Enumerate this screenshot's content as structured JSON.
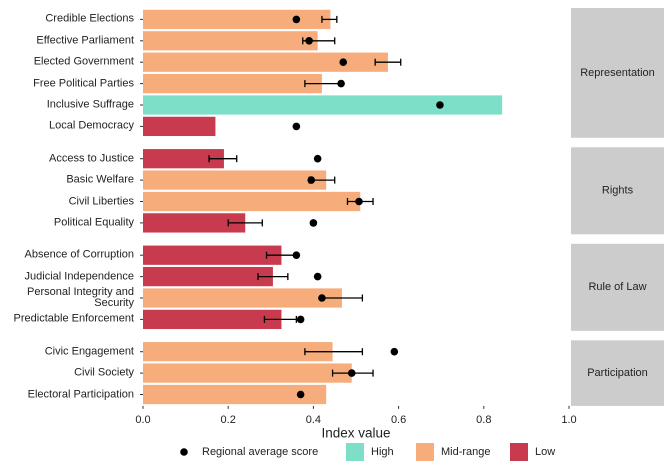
{
  "chart_data": {
    "type": "bar",
    "x_label": "Index value",
    "xlim": [
      0,
      1
    ],
    "xticks": [
      {
        "value": 0,
        "label": "0.0"
      },
      {
        "value": 0.2,
        "label": "0.2"
      },
      {
        "value": 0.4,
        "label": "0.4"
      },
      {
        "value": 0.6,
        "label": "0.6"
      },
      {
        "value": 0.8,
        "label": "0.8"
      },
      {
        "value": 1,
        "label": "1.0"
      }
    ],
    "dot_legend": "Regional average score",
    "levels": [
      {
        "name": "High",
        "color": "#7ddfc8"
      },
      {
        "name": "Mid-range",
        "color": "#f6ad7b"
      },
      {
        "name": "Low",
        "color": "#c83a4e"
      }
    ],
    "facets": [
      {
        "name": "Representation",
        "categories": [
          "Credible Elections",
          "Effective Parliament",
          "Elected Government",
          "Free Political Parties",
          "Inclusive Suffrage",
          "Local Democracy"
        ],
        "values": [
          0.44,
          0.41,
          0.575,
          0.42,
          0.843,
          0.17
        ],
        "level": [
          "Mid-range",
          "Mid-range",
          "Mid-range",
          "Mid-range",
          "High",
          "Low"
        ],
        "ci_low": [
          0.42,
          0.375,
          0.545,
          0.38,
          null,
          null
        ],
        "ci_high": [
          0.455,
          0.45,
          0.605,
          0.465,
          null,
          null
        ],
        "regional": [
          0.36,
          0.39,
          0.47,
          0.465,
          0.697,
          0.36
        ]
      },
      {
        "name": "Rights",
        "categories": [
          "Access to Justice",
          "Basic Welfare",
          "Civil Liberties",
          "Political Equality"
        ],
        "values": [
          0.19,
          0.43,
          0.51,
          0.24
        ],
        "level": [
          "Low",
          "Mid-range",
          "Mid-range",
          "Low"
        ],
        "ci_low": [
          0.155,
          0.39,
          0.48,
          0.2
        ],
        "ci_high": [
          0.22,
          0.45,
          0.54,
          0.28
        ],
        "regional": [
          0.41,
          0.395,
          0.507,
          0.4
        ]
      },
      {
        "name": "Rule of Law",
        "categories": [
          "Absence of Corruption",
          "Judicial Independence",
          "Personal Integrity and\nSecurity",
          "Predictable Enforcement"
        ],
        "values": [
          0.325,
          0.305,
          0.467,
          0.325
        ],
        "level": [
          "Low",
          "Low",
          "Mid-range",
          "Low"
        ],
        "ci_low": [
          0.29,
          0.27,
          0.42,
          0.285
        ],
        "ci_high": [
          0.36,
          0.34,
          0.515,
          0.36
        ],
        "regional": [
          0.36,
          0.41,
          0.42,
          0.37
        ]
      },
      {
        "name": "Participation",
        "categories": [
          "Civic Engagement",
          "Civil Society",
          "Electoral Participation"
        ],
        "values": [
          0.445,
          0.49,
          0.43
        ],
        "level": [
          "Mid-range",
          "Mid-range",
          "Mid-range"
        ],
        "ci_low": [
          0.38,
          0.445,
          null
        ],
        "ci_high": [
          0.515,
          0.54,
          null
        ],
        "regional": [
          0.59,
          0.49,
          0.37
        ]
      }
    ]
  }
}
